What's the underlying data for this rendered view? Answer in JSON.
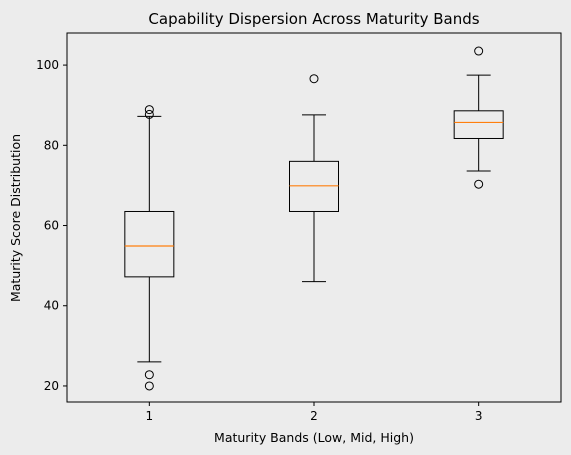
{
  "chart_data": {
    "type": "box",
    "title": "Capability Dispersion Across Maturity Bands",
    "xlabel": "Maturity Bands (Low, Mid, High)",
    "ylabel": "Maturity Score Distribution",
    "ylim": [
      16,
      108
    ],
    "xlim": [
      0.5,
      3.5
    ],
    "yticks": [
      20,
      40,
      60,
      80,
      100
    ],
    "categories": [
      "1",
      "2",
      "3"
    ],
    "grid": false,
    "colors": {
      "background": "#ececec",
      "plot_background": "#ececec",
      "box": "#000000",
      "median": "#ff7f0e"
    },
    "boxes": [
      {
        "category": "1",
        "whisker_low": 26.0,
        "q1": 47.2,
        "median": 54.9,
        "q3": 63.5,
        "whisker_high": 87.2,
        "outliers": [
          20.0,
          22.8,
          87.7,
          88.9
        ]
      },
      {
        "category": "2",
        "whisker_low": 46.0,
        "q1": 63.5,
        "median": 69.9,
        "q3": 76.0,
        "whisker_high": 87.6,
        "outliers": [
          96.6
        ]
      },
      {
        "category": "3",
        "whisker_low": 73.6,
        "q1": 81.7,
        "median": 85.7,
        "q3": 88.6,
        "whisker_high": 97.5,
        "outliers": [
          70.3,
          103.5
        ]
      }
    ]
  }
}
